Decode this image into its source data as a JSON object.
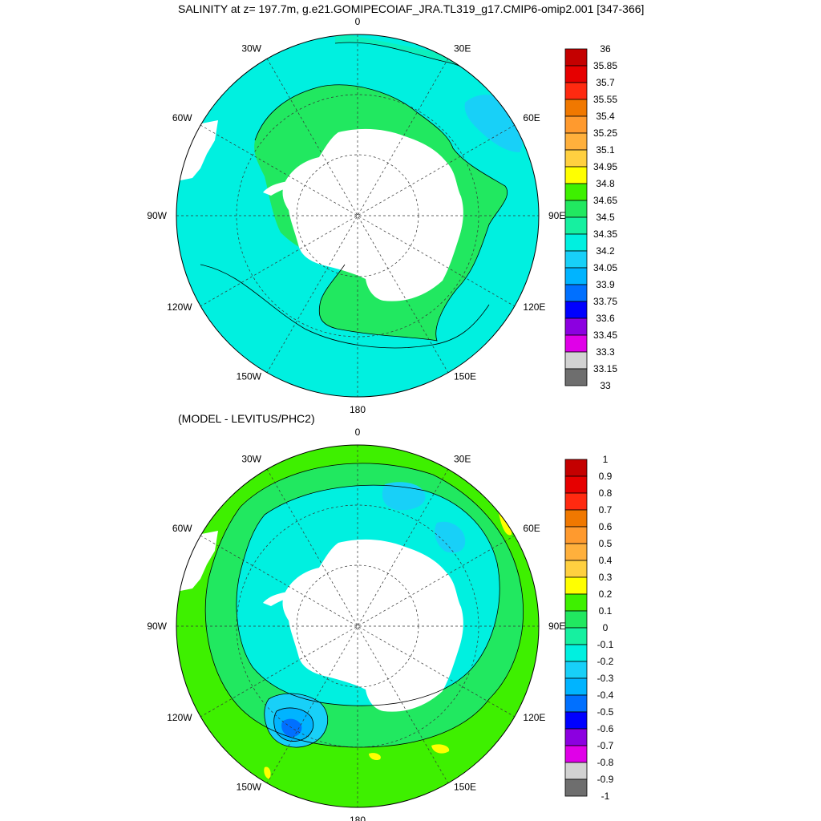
{
  "title": "SALINITY at z= 197.7m, g.e21.GOMIPECOIAF_JRA.TL319_g17.CMIP6-omip2.001 [347-366]",
  "subtitle": "(MODEL - LEVITUS/PHC2)",
  "longitude_labels": [
    "0",
    "30E",
    "60E",
    "90E",
    "120E",
    "150E",
    "180",
    "150W",
    "120W",
    "90W",
    "60W",
    "30W"
  ],
  "panels": [
    {
      "id": "model",
      "colorbar": {
        "labels": [
          "36",
          "35.85",
          "35.7",
          "35.55",
          "35.4",
          "35.25",
          "35.1",
          "34.95",
          "34.8",
          "34.65",
          "34.5",
          "34.35",
          "34.2",
          "34.05",
          "33.9",
          "33.75",
          "33.6",
          "33.45",
          "33.3",
          "33.15",
          "33"
        ],
        "colors": [
          "#c40000",
          "#e60000",
          "#ff2a10",
          "#f07800",
          "#ff9a2e",
          "#ffb03c",
          "#ffd040",
          "#ffff00",
          "#3ef000",
          "#21e860",
          "#16f0a0",
          "#00f0e0",
          "#18d0f8",
          "#00b4ff",
          "#0070ff",
          "#0000ff",
          "#8c00e0",
          "#e000e8",
          "#d2d2d2",
          "#6e6e6e"
        ]
      },
      "field_colors": {
        "background": "#00f0e0",
        "land": "#ffffff",
        "shelf": "#21e860",
        "patch": "#18d0f8"
      }
    },
    {
      "id": "diff",
      "colorbar": {
        "labels": [
          "1",
          "0.9",
          "0.8",
          "0.7",
          "0.6",
          "0.5",
          "0.4",
          "0.3",
          "0.2",
          "0.1",
          "0",
          "-0.1",
          "-0.2",
          "-0.3",
          "-0.4",
          "-0.5",
          "-0.6",
          "-0.7",
          "-0.8",
          "-0.9",
          "-1"
        ],
        "colors": [
          "#c40000",
          "#e60000",
          "#ff2a10",
          "#f07800",
          "#ff9a2e",
          "#ffb03c",
          "#ffd040",
          "#ffff00",
          "#3ef000",
          "#21e860",
          "#16f0a0",
          "#00f0e0",
          "#18d0f8",
          "#00b4ff",
          "#0070ff",
          "#0000ff",
          "#8c00e0",
          "#e000e8",
          "#d2d2d2",
          "#6e6e6e"
        ]
      },
      "field_colors": {
        "background": "#3ef000",
        "land": "#ffffff",
        "near0": "#21e860",
        "neg1": "#00f0e0",
        "neg2": "#18d0f8",
        "neg3": "#00b4ff",
        "neg4": "#0070ff",
        "pos": "#ffff00"
      }
    }
  ]
}
